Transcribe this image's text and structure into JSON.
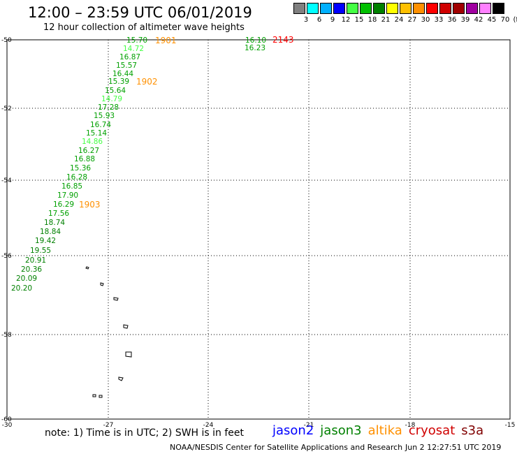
{
  "header": {
    "title": "12:00 – 23:59 UTC 06/01/2019",
    "subtitle": "12 hour collection of altimeter wave heights"
  },
  "legend": {
    "levels": [
      "3",
      "6",
      "9",
      "12",
      "15",
      "18",
      "21",
      "24",
      "27",
      "30",
      "33",
      "36",
      "39",
      "42",
      "45",
      "70",
      "(ft)"
    ],
    "colors": [
      "#808080",
      "#00ffff",
      "#00b0ff",
      "#0000ff",
      "#44ff44",
      "#00c000",
      "#008000",
      "#ffff00",
      "#ffc000",
      "#ff9000",
      "#ff0000",
      "#d00000",
      "#a00000",
      "#a000a0",
      "#ff80ff",
      "#000000"
    ]
  },
  "axes": {
    "y_labels": [
      "-50",
      "-52",
      "-54",
      "-56",
      "-58",
      "-60"
    ],
    "x_labels": [
      "-30",
      "-27",
      "-24",
      "-21",
      "-18",
      "-15"
    ]
  },
  "swh_readings": [
    {
      "text": "15.70",
      "color": "#00a000"
    },
    {
      "text": "14.72",
      "color": "#44ff44"
    },
    {
      "text": "16.87",
      "color": "#00a000"
    },
    {
      "text": "15.57",
      "color": "#00a000"
    },
    {
      "text": "16.44",
      "color": "#00a000"
    },
    {
      "text": "15.39",
      "color": "#00a000"
    },
    {
      "text": "15.64",
      "color": "#00a000"
    },
    {
      "text": "14.79",
      "color": "#44ff44"
    },
    {
      "text": "17.28",
      "color": "#00a000"
    },
    {
      "text": "15.93",
      "color": "#00a000"
    },
    {
      "text": "16.74",
      "color": "#00a000"
    },
    {
      "text": "15.14",
      "color": "#00a000"
    },
    {
      "text": "14.86",
      "color": "#44ff44"
    },
    {
      "text": "16.27",
      "color": "#00a000"
    },
    {
      "text": "16.88",
      "color": "#00a000"
    },
    {
      "text": "15.36",
      "color": "#00a000"
    },
    {
      "text": "16.28",
      "color": "#00a000"
    },
    {
      "text": "16.85",
      "color": "#00a000"
    },
    {
      "text": "17.90",
      "color": "#00a000"
    },
    {
      "text": "16.29",
      "color": "#00a000"
    },
    {
      "text": "17.56",
      "color": "#00a000"
    },
    {
      "text": "18.74",
      "color": "#008000"
    },
    {
      "text": "18.84",
      "color": "#008000"
    },
    {
      "text": "19.42",
      "color": "#008000"
    },
    {
      "text": "19.55",
      "color": "#008000"
    },
    {
      "text": "20.91",
      "color": "#008000"
    },
    {
      "text": "20.36",
      "color": "#008000"
    },
    {
      "text": "20.09",
      "color": "#008000"
    },
    {
      "text": "20.20",
      "color": "#008000"
    },
    {
      "text": "16.10",
      "color": "#00a000"
    },
    {
      "text": "16.23",
      "color": "#00a000"
    }
  ],
  "time_markers": [
    {
      "text": "1901",
      "color": "#ff9000"
    },
    {
      "text": "1902",
      "color": "#ff9000"
    },
    {
      "text": "1903",
      "color": "#ff9000"
    },
    {
      "text": "2143",
      "color": "#ff0000"
    }
  ],
  "satellites": [
    {
      "name": "jason2",
      "color": "#0000ff"
    },
    {
      "name": "jason3",
      "color": "#008000"
    },
    {
      "name": "altika",
      "color": "#ff9000"
    },
    {
      "name": "cryosat",
      "color": "#d00000"
    },
    {
      "name": "s3a",
      "color": "#800000"
    }
  ],
  "footer": {
    "note": "note: 1) Time is in UTC; 2) SWH is in feet",
    "credit": "NOAA/NESDIS Center for Satellite Applications and Research",
    "timestamp": "Jun  2 12:27:51 UTC 2019"
  }
}
